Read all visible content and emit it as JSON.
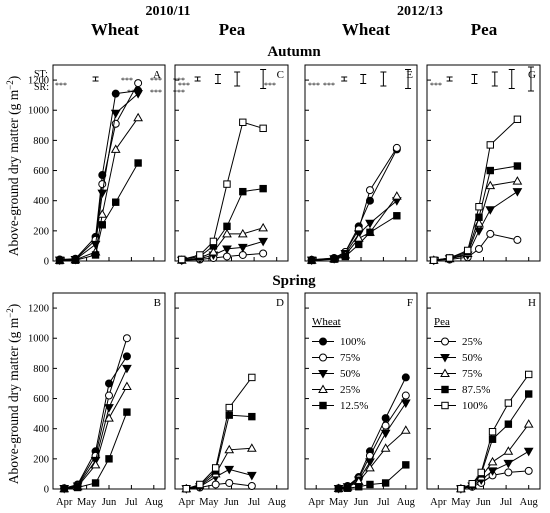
{
  "header": {
    "seasons": [
      "2010/11",
      "2012/13"
    ],
    "crops": [
      "Wheat",
      "Pea",
      "Wheat",
      "Pea"
    ],
    "rows": [
      "Autumn",
      "Spring"
    ],
    "ylabel": "Above-ground dry matter (g m",
    "ylabel_sup": "−2",
    "ylabel_close": ")",
    "st_label": "ST:",
    "sr_label": "SR:"
  },
  "legends": {
    "wheat": {
      "title": "Wheat",
      "items": [
        "100%",
        "75%",
        "50%",
        "25%",
        "12.5%"
      ],
      "markers": [
        "filled-circle",
        "open-circle",
        "filled-triangle-down",
        "open-triangle-up",
        "filled-square"
      ]
    },
    "pea": {
      "title": "Pea",
      "items": [
        "25%",
        "50%",
        "75%",
        "87.5%",
        "100%"
      ],
      "markers": [
        "open-circle",
        "filled-triangle-down",
        "open-triangle-up",
        "filled-square",
        "open-square"
      ]
    }
  },
  "chart_data": [
    {
      "panel": "A",
      "type": "line",
      "season": "2010/11",
      "crop": "Wheat",
      "sowing": "Autumn",
      "x_ticks": [
        "Apr",
        "May",
        "Jun",
        "Jul",
        "Aug"
      ],
      "ylim": [
        0,
        1300
      ],
      "y_ticks": [
        0,
        200,
        400,
        600,
        800,
        1000,
        1200
      ],
      "sig_st": "***",
      "sig_sr": [
        "***",
        "***",
        "***",
        "***",
        "***",
        "***"
      ],
      "series": [
        {
          "name": "100%",
          "marker": "filled-circle",
          "x": [
            3.8,
            4.5,
            5.4,
            5.7,
            6.3,
            7.3
          ],
          "y": [
            10,
            15,
            160,
            570,
            1110,
            1130
          ]
        },
        {
          "name": "75%",
          "marker": "open-circle",
          "x": [
            3.8,
            4.5,
            5.4,
            5.7,
            6.3,
            7.3
          ],
          "y": [
            8,
            12,
            140,
            510,
            910,
            1180
          ]
        },
        {
          "name": "50%",
          "marker": "filled-triangle-down",
          "x": [
            3.8,
            4.5,
            5.4,
            5.7,
            6.3,
            7.3
          ],
          "y": [
            6,
            10,
            110,
            450,
            980,
            1110
          ]
        },
        {
          "name": "25%",
          "marker": "open-triangle-up",
          "x": [
            3.8,
            4.5,
            5.4,
            5.7,
            6.3,
            7.3
          ],
          "y": [
            4,
            8,
            60,
            310,
            740,
            950
          ]
        },
        {
          "name": "12.5%",
          "marker": "filled-square",
          "x": [
            3.8,
            4.5,
            5.4,
            5.7,
            6.3,
            7.3
          ],
          "y": [
            3,
            5,
            40,
            240,
            390,
            650
          ]
        }
      ]
    },
    {
      "panel": "C",
      "type": "line",
      "season": "2010/11",
      "crop": "Pea",
      "sowing": "Autumn",
      "x_ticks": [
        "Apr",
        "May",
        "Jun",
        "Jul",
        "Aug"
      ],
      "ylim": [
        0,
        1300
      ],
      "y_ticks": [
        0,
        200,
        400,
        600,
        800,
        1000,
        1200
      ],
      "sig_sr": [
        "***",
        "***"
      ],
      "series": [
        {
          "name": "25%",
          "marker": "open-circle",
          "x": [
            3.8,
            4.6,
            5.2,
            5.8,
            6.5,
            7.4
          ],
          "y": [
            5,
            10,
            20,
            30,
            40,
            50
          ]
        },
        {
          "name": "50%",
          "marker": "filled-triangle-down",
          "x": [
            3.8,
            4.6,
            5.2,
            5.8,
            6.5,
            7.4
          ],
          "y": [
            5,
            15,
            40,
            80,
            90,
            130
          ]
        },
        {
          "name": "75%",
          "marker": "open-triangle-up",
          "x": [
            3.8,
            4.6,
            5.2,
            5.8,
            6.5,
            7.4
          ],
          "y": [
            5,
            20,
            60,
            180,
            180,
            220
          ]
        },
        {
          "name": "87.5%",
          "marker": "filled-square",
          "x": [
            3.8,
            4.6,
            5.2,
            5.8,
            6.5,
            7.4
          ],
          "y": [
            10,
            30,
            100,
            230,
            460,
            480
          ]
        },
        {
          "name": "100%",
          "marker": "open-square",
          "x": [
            3.8,
            4.6,
            5.2,
            5.8,
            6.5,
            7.4
          ],
          "y": [
            10,
            40,
            130,
            510,
            920,
            880
          ]
        }
      ]
    },
    {
      "panel": "E",
      "type": "line",
      "season": "2012/13",
      "crop": "Wheat",
      "sowing": "Autumn",
      "x_ticks": [
        "Apr",
        "May",
        "Jun",
        "Jul",
        "Aug"
      ],
      "ylim": [
        0,
        1300
      ],
      "y_ticks": [
        0,
        200,
        400,
        600,
        800,
        1000,
        1200
      ],
      "sig_sr": [
        "***",
        "***"
      ],
      "series": [
        {
          "name": "100%",
          "marker": "filled-circle",
          "x": [
            3.8,
            4.8,
            5.3,
            5.9,
            6.4,
            7.6
          ],
          "y": [
            8,
            20,
            60,
            230,
            400,
            740
          ]
        },
        {
          "name": "75%",
          "marker": "open-circle",
          "x": [
            3.8,
            4.8,
            5.3,
            5.9,
            6.4,
            7.6
          ],
          "y": [
            7,
            18,
            60,
            210,
            470,
            750
          ]
        },
        {
          "name": "50%",
          "marker": "filled-triangle-down",
          "x": [
            3.8,
            4.8,
            5.3,
            5.9,
            6.4,
            7.6
          ],
          "y": [
            6,
            15,
            50,
            180,
            250,
            400
          ]
        },
        {
          "name": "25%",
          "marker": "open-triangle-up",
          "x": [
            3.8,
            4.8,
            5.3,
            5.9,
            6.4,
            7.6
          ],
          "y": [
            5,
            14,
            40,
            150,
            190,
            430
          ]
        },
        {
          "name": "12.5%",
          "marker": "filled-square",
          "x": [
            3.8,
            4.8,
            5.3,
            5.9,
            6.4,
            7.6
          ],
          "y": [
            4,
            12,
            30,
            110,
            190,
            300
          ]
        }
      ]
    },
    {
      "panel": "G",
      "type": "line",
      "season": "2012/13",
      "crop": "Pea",
      "sowing": "Autumn",
      "x_ticks": [
        "Apr",
        "May",
        "Jun",
        "Jul",
        "Aug"
      ],
      "ylim": [
        0,
        1300
      ],
      "y_ticks": [
        0,
        200,
        400,
        600,
        800,
        1000,
        1200
      ],
      "sig_sr": [
        "***"
      ],
      "series": [
        {
          "name": "25%",
          "marker": "open-circle",
          "x": [
            3.8,
            4.5,
            5.3,
            5.8,
            6.3,
            7.5
          ],
          "y": [
            5,
            10,
            25,
            80,
            180,
            140
          ]
        },
        {
          "name": "50%",
          "marker": "filled-triangle-down",
          "x": [
            3.8,
            4.5,
            5.3,
            5.8,
            6.3,
            7.5
          ],
          "y": [
            5,
            15,
            40,
            200,
            340,
            460
          ]
        },
        {
          "name": "75%",
          "marker": "open-triangle-up",
          "x": [
            3.8,
            4.5,
            5.3,
            5.8,
            6.3,
            7.5
          ],
          "y": [
            5,
            15,
            50,
            250,
            500,
            530
          ]
        },
        {
          "name": "87.5%",
          "marker": "filled-square",
          "x": [
            3.8,
            4.5,
            5.3,
            5.8,
            6.3,
            7.5
          ],
          "y": [
            5,
            20,
            60,
            290,
            600,
            630
          ]
        },
        {
          "name": "100%",
          "marker": "open-square",
          "x": [
            3.8,
            4.5,
            5.3,
            5.8,
            6.3,
            7.5
          ],
          "y": [
            5,
            20,
            70,
            360,
            770,
            940
          ]
        }
      ]
    },
    {
      "panel": "B",
      "type": "line",
      "season": "2010/11",
      "crop": "Wheat",
      "sowing": "Spring",
      "x_ticks": [
        "Apr",
        "May",
        "Jun",
        "Jul",
        "Aug"
      ],
      "ylim": [
        0,
        1300
      ],
      "y_ticks": [
        0,
        200,
        400,
        600,
        800,
        1000,
        1200
      ],
      "series": [
        {
          "name": "100%",
          "marker": "filled-circle",
          "x": [
            4.0,
            4.6,
            5.4,
            6.0,
            6.8
          ],
          "y": [
            5,
            30,
            250,
            700,
            880
          ]
        },
        {
          "name": "75%",
          "marker": "open-circle",
          "x": [
            4.0,
            4.6,
            5.4,
            6.0,
            6.8
          ],
          "y": [
            4,
            25,
            220,
            620,
            1000
          ]
        },
        {
          "name": "50%",
          "marker": "filled-triangle-down",
          "x": [
            4.0,
            4.6,
            5.4,
            6.0,
            6.8
          ],
          "y": [
            3,
            20,
            190,
            540,
            800
          ]
        },
        {
          "name": "25%",
          "marker": "open-triangle-up",
          "x": [
            4.0,
            4.6,
            5.4,
            6.0,
            6.8
          ],
          "y": [
            2,
            15,
            160,
            470,
            680
          ]
        },
        {
          "name": "12.5%",
          "marker": "filled-square",
          "x": [
            4.0,
            4.6,
            5.4,
            6.0,
            6.8
          ],
          "y": [
            2,
            10,
            40,
            200,
            510
          ]
        }
      ]
    },
    {
      "panel": "D",
      "type": "line",
      "season": "2010/11",
      "crop": "Pea",
      "sowing": "Spring",
      "x_ticks": [
        "Apr",
        "May",
        "Jun",
        "Jul",
        "Aug"
      ],
      "ylim": [
        0,
        1300
      ],
      "y_ticks": [
        0,
        200,
        400,
        600,
        800,
        1000,
        1200
      ],
      "series": [
        {
          "name": "25%",
          "marker": "open-circle",
          "x": [
            4.0,
            4.6,
            5.3,
            5.9,
            6.9
          ],
          "y": [
            2,
            10,
            30,
            40,
            20
          ]
        },
        {
          "name": "50%",
          "marker": "filled-triangle-down",
          "x": [
            4.0,
            4.6,
            5.3,
            5.9,
            6.9
          ],
          "y": [
            2,
            15,
            80,
            130,
            90
          ]
        },
        {
          "name": "75%",
          "marker": "open-triangle-up",
          "x": [
            4.0,
            4.6,
            5.3,
            5.9,
            6.9
          ],
          "y": [
            2,
            20,
            100,
            260,
            270
          ]
        },
        {
          "name": "87.5%",
          "marker": "filled-square",
          "x": [
            4.0,
            4.6,
            5.3,
            5.9,
            6.9
          ],
          "y": [
            2,
            25,
            120,
            490,
            480
          ]
        },
        {
          "name": "100%",
          "marker": "open-square",
          "x": [
            4.0,
            4.6,
            5.3,
            5.9,
            6.9
          ],
          "y": [
            2,
            30,
            140,
            540,
            740
          ]
        }
      ]
    },
    {
      "panel": "F",
      "type": "line",
      "season": "2012/13",
      "crop": "Wheat",
      "sowing": "Spring",
      "x_ticks": [
        "Apr",
        "May",
        "Jun",
        "Jul",
        "Aug"
      ],
      "ylim": [
        0,
        1300
      ],
      "y_ticks": [
        0,
        200,
        400,
        600,
        800,
        1000,
        1200
      ],
      "series": [
        {
          "name": "100%",
          "marker": "filled-circle",
          "x": [
            5.0,
            5.4,
            5.9,
            6.4,
            7.1,
            8.0
          ],
          "y": [
            5,
            20,
            80,
            250,
            470,
            740
          ]
        },
        {
          "name": "75%",
          "marker": "open-circle",
          "x": [
            5.0,
            5.4,
            5.9,
            6.4,
            7.1,
            8.0
          ],
          "y": [
            4,
            18,
            70,
            220,
            420,
            620
          ]
        },
        {
          "name": "50%",
          "marker": "filled-triangle-down",
          "x": [
            5.0,
            5.4,
            5.9,
            6.4,
            7.1,
            8.0
          ],
          "y": [
            3,
            15,
            60,
            180,
            370,
            570
          ]
        },
        {
          "name": "25%",
          "marker": "open-triangle-up",
          "x": [
            5.0,
            5.4,
            5.9,
            6.4,
            7.1,
            8.0
          ],
          "y": [
            3,
            12,
            50,
            140,
            270,
            390
          ]
        },
        {
          "name": "12.5%",
          "marker": "filled-square",
          "x": [
            5.0,
            5.4,
            5.9,
            6.4,
            7.1,
            8.0
          ],
          "y": [
            2,
            5,
            15,
            30,
            40,
            160
          ]
        }
      ]
    },
    {
      "panel": "H",
      "type": "line",
      "season": "2012/13",
      "crop": "Pea",
      "sowing": "Spring",
      "x_ticks": [
        "Apr",
        "May",
        "Jun",
        "Jul",
        "Aug"
      ],
      "ylim": [
        0,
        1300
      ],
      "y_ticks": [
        0,
        200,
        400,
        600,
        800,
        1000,
        1200
      ],
      "series": [
        {
          "name": "25%",
          "marker": "open-circle",
          "x": [
            5.0,
            5.5,
            5.9,
            6.4,
            7.1,
            8.0
          ],
          "y": [
            2,
            15,
            40,
            90,
            110,
            120
          ]
        },
        {
          "name": "50%",
          "marker": "filled-triangle-down",
          "x": [
            5.0,
            5.5,
            5.9,
            6.4,
            7.1,
            8.0
          ],
          "y": [
            2,
            20,
            60,
            120,
            170,
            250
          ]
        },
        {
          "name": "75%",
          "marker": "open-triangle-up",
          "x": [
            5.0,
            5.5,
            5.9,
            6.4,
            7.1,
            8.0
          ],
          "y": [
            2,
            25,
            80,
            180,
            250,
            430
          ]
        },
        {
          "name": "87.5%",
          "marker": "filled-square",
          "x": [
            5.0,
            5.5,
            5.9,
            6.4,
            7.1,
            8.0
          ],
          "y": [
            2,
            30,
            100,
            330,
            430,
            630
          ]
        },
        {
          "name": "100%",
          "marker": "open-square",
          "x": [
            5.0,
            5.5,
            5.9,
            6.4,
            7.1,
            8.0
          ],
          "y": [
            2,
            35,
            110,
            380,
            570,
            760
          ]
        }
      ]
    }
  ]
}
